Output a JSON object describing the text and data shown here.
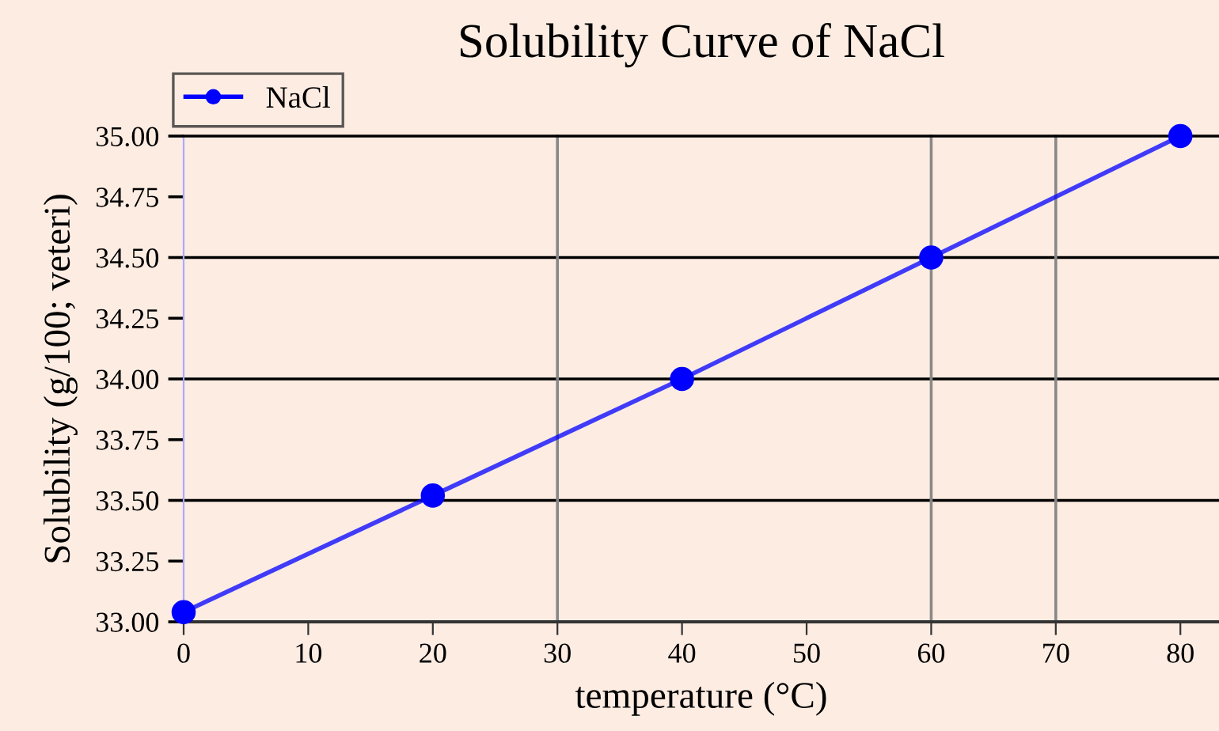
{
  "chart_data": {
    "type": "line",
    "title": "Solubility Curve of NaCl",
    "xlabel": "temperature (°C)",
    "ylabel": "Solubility (g/100; veteri)",
    "x": [
      0,
      20,
      40,
      60,
      80
    ],
    "series": [
      {
        "name": "NaCl",
        "color": "#0000ff",
        "values": [
          33.04,
          33.52,
          34.0,
          34.5,
          35.0
        ]
      }
    ],
    "xlim": [
      0,
      83.1
    ],
    "ylim": [
      33.0,
      35.0
    ],
    "xticks": [
      0,
      10,
      20,
      30,
      40,
      50,
      60,
      70,
      80
    ],
    "yticks": [
      {
        "value": 33.0,
        "label": "33.00"
      },
      {
        "value": 33.25,
        "label": "33.25"
      },
      {
        "value": 33.5,
        "label": "33.50"
      },
      {
        "value": 33.75,
        "label": "33.75"
      },
      {
        "value": 34.0,
        "label": "34.00"
      },
      {
        "value": 34.25,
        "label": "34.25"
      },
      {
        "value": 34.5,
        "label": "34.50"
      },
      {
        "value": 34.75,
        "label": "34.75"
      },
      {
        "value": 35.0,
        "label": "35.00"
      }
    ],
    "legend": "top left",
    "marker": "circle",
    "line_style": "solid",
    "ref_lines": [
      {
        "axis": "y",
        "value": 33.5,
        "color": "#000000"
      },
      {
        "axis": "y",
        "value": 34.0,
        "color": "#000000"
      },
      {
        "axis": "y",
        "value": 34.5,
        "color": "#000000"
      },
      {
        "axis": "x",
        "value": 30,
        "color": "#888888"
      },
      {
        "axis": "x",
        "value": 60,
        "color": "#888888"
      },
      {
        "axis": "x",
        "value": 70,
        "color": "#888888"
      }
    ]
  }
}
